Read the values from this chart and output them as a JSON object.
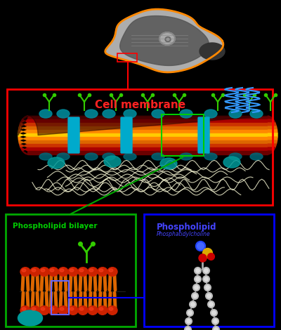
{
  "background_color": "#000000",
  "title": "Cell membrane",
  "title_color": "#ff2222",
  "title_fontsize": 11,
  "phospholipid_bilayer_label": "Phospholipid bilayer",
  "phospholipid_bilayer_label_color": "#00cc00",
  "phospholipid_label": "Phospholipid",
  "phospholipid_sublabel": "Phosphatidylcholine",
  "phospholipid_label_color": "#4444ff",
  "phospholipid_sublabel_color": "#4444ff",
  "cell_box_color": "#ff0000",
  "bilayer_box_color": "#00aa00",
  "phospholipid_box_color": "#0000ff",
  "connector_line_color_green": "#00aa00",
  "connector_line_color_blue": "#0000ff",
  "connector_line_color_red": "#ff0000"
}
